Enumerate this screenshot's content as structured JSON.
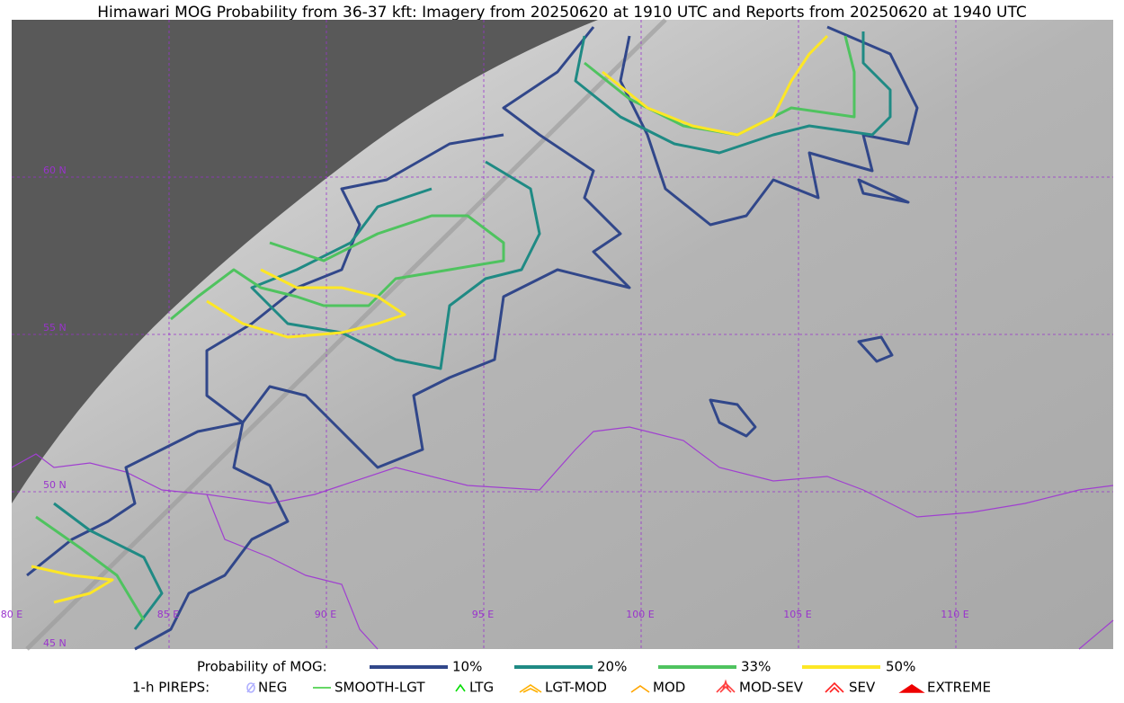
{
  "header": {
    "title": "Himawari MOG Probability from 36-37 kft: Imagery from 20250620 at 1910 UTC and Reports from 20250620 at 1940 UTC"
  },
  "map": {
    "lat_labels": [
      "60 N",
      "55 N",
      "50 N",
      "45 N"
    ],
    "lon_labels": [
      "80 E",
      "85 E",
      "90 E",
      "95 E",
      "100 E",
      "105 E",
      "110 E"
    ]
  },
  "legend": {
    "probability": {
      "title": "Probability of MOG:",
      "items": [
        {
          "label": "10%",
          "color": "#31478a"
        },
        {
          "label": "20%",
          "color": "#1f8a84"
        },
        {
          "label": "33%",
          "color": "#4fc35f"
        },
        {
          "label": "50%",
          "color": "#fde725"
        }
      ]
    },
    "pireps": {
      "title": "1-h PIREPS:",
      "items": [
        {
          "label": "NEG",
          "color": "#b0b0ff"
        },
        {
          "label": "SMOOTH-LGT",
          "color": "#33cc33"
        },
        {
          "label": "LTG",
          "color": "#00dd00"
        },
        {
          "label": "LGT-MOD",
          "color": "#ffb000"
        },
        {
          "label": "MOD",
          "color": "#ffa500"
        },
        {
          "label": "MOD-SEV",
          "color": "#ff4040"
        },
        {
          "label": "SEV",
          "color": "#ff2020"
        },
        {
          "label": "EXTREME",
          "color": "#ee0000"
        }
      ]
    }
  }
}
